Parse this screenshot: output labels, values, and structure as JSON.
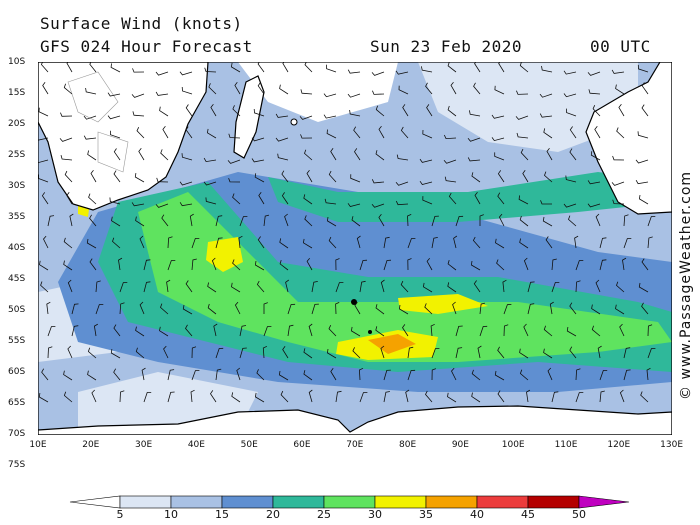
{
  "header": {
    "title": "Surface Wind (knots)",
    "subtitle": "GFS 024 Hour Forecast",
    "date": "Sun 23 Feb 2020",
    "time": "00 UTC"
  },
  "credit": "© www.PassageWeather.com",
  "axes": {
    "lat_labels": [
      "10S",
      "15S",
      "20S",
      "25S",
      "30S",
      "35S",
      "40S",
      "45S",
      "50S",
      "55S",
      "60S",
      "65S",
      "70S",
      "75S"
    ],
    "lon_labels": [
      "10E",
      "20E",
      "30E",
      "40E",
      "50E",
      "60E",
      "70E",
      "80E",
      "90E",
      "100E",
      "110E",
      "120E",
      "130E"
    ]
  },
  "legend": {
    "values": [
      "5",
      "10",
      "15",
      "20",
      "25",
      "30",
      "35",
      "40",
      "45",
      "50"
    ],
    "colors": [
      "#ffffff",
      "#dce6f4",
      "#a9c1e4",
      "#5f8fd1",
      "#2fb89a",
      "#5fe35f",
      "#f2f200",
      "#f5a200",
      "#ec3c3c",
      "#b40000",
      "#c000c0"
    ]
  },
  "colors": {
    "land": "#ffffff",
    "coast": "#000000",
    "frame": "#000000"
  }
}
